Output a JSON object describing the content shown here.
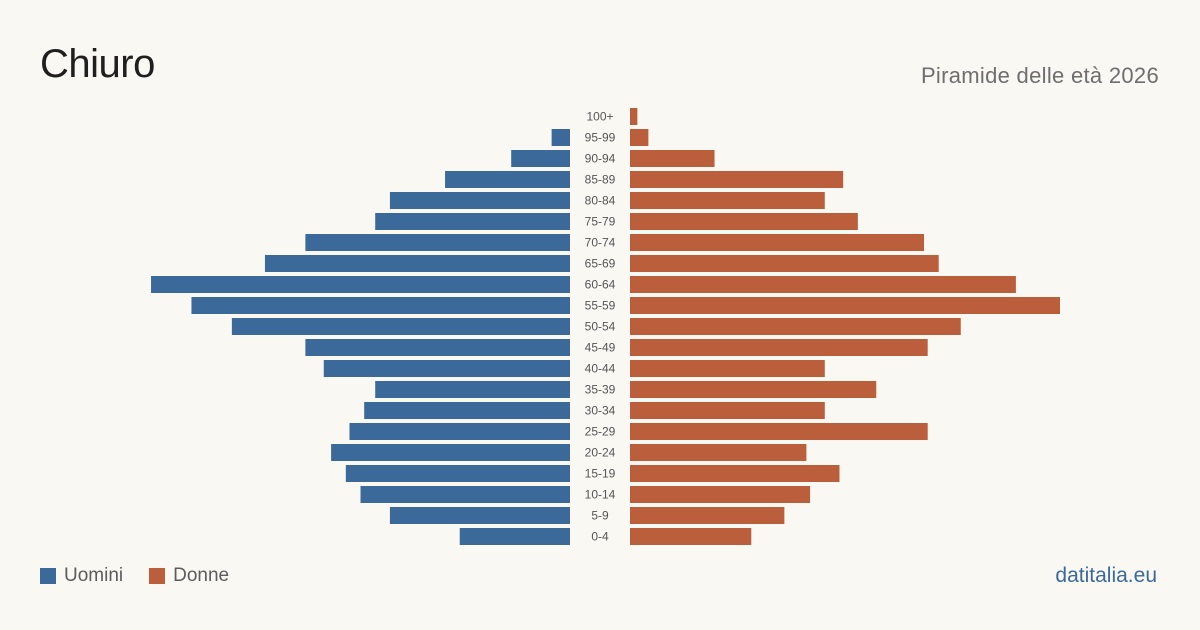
{
  "header": {
    "title": "Chiuro",
    "subtitle": "Piramide delle età 2026"
  },
  "legend": {
    "items": [
      {
        "label": "Uomini",
        "color": "#3b6a9a"
      },
      {
        "label": "Donne",
        "color": "#bb5e3c"
      }
    ]
  },
  "footer": {
    "brand": "datitalia.eu"
  },
  "chart_data": {
    "type": "bar",
    "orientation": "horizontal-pyramid",
    "categories": [
      "100+",
      "95-99",
      "90-94",
      "85-89",
      "80-84",
      "75-79",
      "70-74",
      "65-69",
      "60-64",
      "55-59",
      "50-54",
      "45-49",
      "40-44",
      "35-39",
      "30-34",
      "25-29",
      "20-24",
      "15-19",
      "10-14",
      "5-9",
      "0-4"
    ],
    "series": [
      {
        "name": "Uomini",
        "color": "#3b6a9a",
        "values": [
          0,
          5,
          16,
          34,
          49,
          53,
          72,
          83,
          114,
          103,
          92,
          72,
          67,
          53,
          56,
          60,
          65,
          61,
          57,
          49,
          30
        ]
      },
      {
        "name": "Donne",
        "color": "#bb5e3c",
        "values": [
          2,
          5,
          23,
          58,
          53,
          62,
          80,
          84,
          105,
          117,
          90,
          81,
          53,
          67,
          53,
          81,
          48,
          57,
          49,
          42,
          33
        ]
      }
    ],
    "legend_position": "bottom-left",
    "grid": false
  }
}
